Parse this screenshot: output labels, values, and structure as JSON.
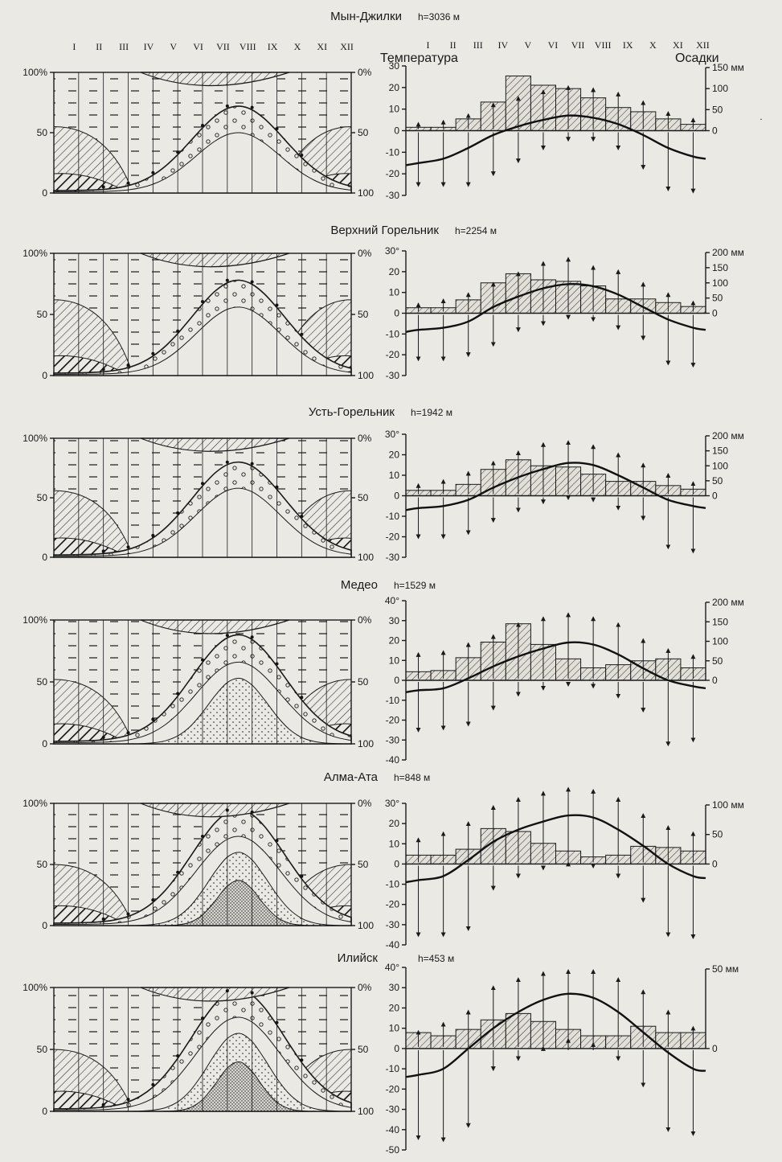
{
  "header": {
    "temperature_label": "Температура",
    "precip_label": "Осадки"
  },
  "months": [
    "I",
    "II",
    "III",
    "IV",
    "V",
    "VI",
    "VII",
    "VIII",
    "IX",
    "X",
    "XI",
    "XII"
  ],
  "left_axis": {
    "y_ticks": [
      "100%",
      "50",
      "0"
    ],
    "right_ticks": [
      "0%",
      "50",
      "100"
    ]
  },
  "stations": [
    {
      "name": "Мын-Джилки",
      "h_label": "h=3036 м"
    },
    {
      "name": "Верхний Горельник",
      "h_label": "h=2254 м"
    },
    {
      "name": "Усть-Горельник",
      "h_label": "h=1942 м"
    },
    {
      "name": "Медео",
      "h_label": "h=1529 м"
    },
    {
      "name": "Алма-Ата",
      "h_label": "h=848 м"
    },
    {
      "name": "Илийск",
      "h_label": "h=453 м"
    }
  ],
  "chart_data": [
    {
      "type": "bar",
      "station": "Мын-Джилки",
      "categories": [
        "I",
        "II",
        "III",
        "IV",
        "V",
        "VI",
        "VII",
        "VIII",
        "IX",
        "X",
        "XI",
        "XII"
      ],
      "temp_ticks": [
        "30",
        "20",
        "10",
        "0",
        "-10",
        "-20",
        "-30"
      ],
      "ylim_temp": [
        -30,
        30
      ],
      "precip_ticks": [
        "150 мм",
        "100",
        "50",
        "0"
      ],
      "ylim_precip": [
        0,
        150
      ],
      "series": [
        {
          "name": "Осадки",
          "kind": "bar",
          "values": [
            8,
            8,
            28,
            68,
            130,
            108,
            100,
            78,
            55,
            45,
            28,
            15
          ]
        },
        {
          "name": "Температура",
          "kind": "line",
          "values": [
            -15,
            -13,
            -8,
            -2,
            2,
            5,
            7,
            6,
            3,
            -2,
            -8,
            -12
          ]
        },
        {
          "name": "max",
          "kind": "arrow-up",
          "values": [
            3,
            4,
            7,
            12,
            15,
            18,
            20,
            19,
            17,
            13,
            8,
            5
          ]
        },
        {
          "name": "min",
          "kind": "arrow-down",
          "values": [
            -25,
            -25,
            -25,
            -20,
            -14,
            -8,
            -4,
            -4,
            -8,
            -17,
            -27,
            -28
          ]
        }
      ]
    },
    {
      "type": "bar",
      "station": "Верхний Горельник",
      "categories": [
        "I",
        "II",
        "III",
        "IV",
        "V",
        "VI",
        "VII",
        "VIII",
        "IX",
        "X",
        "XI",
        "XII"
      ],
      "temp_ticks": [
        "30°",
        "20",
        "10",
        "0",
        "-10",
        "-20",
        "-30"
      ],
      "ylim_temp": [
        -30,
        30
      ],
      "precip_ticks": [
        "200 мм",
        "150",
        "100",
        "50",
        "0"
      ],
      "ylim_precip": [
        0,
        200
      ],
      "series": [
        {
          "name": "Осадки",
          "kind": "bar",
          "values": [
            18,
            18,
            44,
            100,
            130,
            110,
            105,
            90,
            47,
            47,
            35,
            22
          ]
        },
        {
          "name": "Температура",
          "kind": "line",
          "values": [
            -8,
            -7,
            -4,
            3,
            8,
            12,
            14,
            13,
            9,
            3,
            -3,
            -7
          ]
        },
        {
          "name": "max",
          "kind": "arrow-up",
          "values": [
            4,
            6,
            9,
            14,
            19,
            24,
            26,
            22,
            20,
            14,
            9,
            5
          ]
        },
        {
          "name": "min",
          "kind": "arrow-down",
          "values": [
            -22,
            -22,
            -20,
            -15,
            -8,
            -5,
            -2,
            -3,
            -7,
            -12,
            -24,
            -25
          ]
        }
      ]
    },
    {
      "type": "bar",
      "station": "Усть-Горельник",
      "categories": [
        "I",
        "II",
        "III",
        "IV",
        "V",
        "VI",
        "VII",
        "VIII",
        "IX",
        "X",
        "XI",
        "XII"
      ],
      "temp_ticks": [
        "30°",
        "20",
        "10",
        "0",
        "-10",
        "-20",
        "-30"
      ],
      "ylim_temp": [
        -30,
        30
      ],
      "precip_ticks": [
        "200 мм",
        "150",
        "100",
        "50",
        "0"
      ],
      "ylim_precip": [
        0,
        200
      ],
      "series": [
        {
          "name": "Осадки",
          "kind": "bar",
          "values": [
            18,
            18,
            38,
            88,
            120,
            100,
            96,
            72,
            48,
            48,
            34,
            22
          ]
        },
        {
          "name": "Температура",
          "kind": "line",
          "values": [
            -6,
            -5,
            -2,
            4,
            9,
            13,
            16,
            15,
            10,
            4,
            -2,
            -5
          ]
        },
        {
          "name": "max",
          "kind": "arrow-up",
          "values": [
            5,
            7,
            11,
            16,
            21,
            25,
            26,
            24,
            20,
            15,
            10,
            6
          ]
        },
        {
          "name": "min",
          "kind": "arrow-down",
          "values": [
            -20,
            -20,
            -18,
            -12,
            -7,
            -3,
            -1,
            -2,
            -6,
            -11,
            -25,
            -27
          ]
        }
      ]
    },
    {
      "type": "bar",
      "station": "Медео",
      "categories": [
        "I",
        "II",
        "III",
        "IV",
        "V",
        "VI",
        "VII",
        "VIII",
        "IX",
        "X",
        "XI",
        "XII"
      ],
      "temp_ticks": [
        "40°",
        "30",
        "20",
        "10",
        "0",
        "-10",
        "-20",
        "-30",
        "-40"
      ],
      "ylim_temp": [
        -40,
        40
      ],
      "precip_ticks": [
        "200 мм",
        "150",
        "100",
        "50",
        "0"
      ],
      "ylim_precip": [
        0,
        200
      ],
      "series": [
        {
          "name": "Осадки",
          "kind": "bar",
          "values": [
            22,
            25,
            58,
            98,
            145,
            92,
            55,
            32,
            40,
            50,
            55,
            32
          ]
        },
        {
          "name": "Температура",
          "kind": "line",
          "values": [
            -5,
            -4,
            1,
            7,
            12,
            16,
            19,
            18,
            13,
            6,
            0,
            -3
          ]
        },
        {
          "name": "max",
          "kind": "arrow-up",
          "values": [
            13,
            14,
            18,
            22,
            28,
            31,
            33,
            31,
            28,
            20,
            15,
            12
          ]
        },
        {
          "name": "min",
          "kind": "arrow-down",
          "values": [
            -25,
            -24,
            -22,
            -14,
            -7,
            -4,
            -2,
            -3,
            -8,
            -15,
            -32,
            -30
          ]
        }
      ]
    },
    {
      "type": "bar",
      "station": "Алма-Ата",
      "categories": [
        "I",
        "II",
        "III",
        "IV",
        "V",
        "VI",
        "VII",
        "VIII",
        "IX",
        "X",
        "XI",
        "XII"
      ],
      "temp_ticks": [
        "30°",
        "20",
        "10",
        "0",
        "-10",
        "-20",
        "-30",
        "-40"
      ],
      "ylim_temp": [
        -40,
        30
      ],
      "precip_ticks": [
        "100 мм",
        "50",
        "0"
      ],
      "ylim_precip": [
        0,
        100
      ],
      "series": [
        {
          "name": "Осадки",
          "kind": "bar",
          "values": [
            15,
            15,
            25,
            60,
            55,
            35,
            22,
            12,
            15,
            30,
            28,
            22
          ]
        },
        {
          "name": "Температура",
          "kind": "line",
          "values": [
            -8,
            -6,
            2,
            11,
            17,
            21,
            24,
            23,
            17,
            9,
            0,
            -6
          ]
        },
        {
          "name": "max",
          "kind": "arrow-up",
          "values": [
            12,
            15,
            20,
            28,
            32,
            35,
            37,
            36,
            32,
            24,
            18,
            15
          ]
        },
        {
          "name": "min",
          "kind": "arrow-down",
          "values": [
            -35,
            -35,
            -32,
            -12,
            -6,
            -2,
            0,
            -1,
            -6,
            -18,
            -35,
            -36
          ]
        }
      ]
    },
    {
      "type": "bar",
      "station": "Илийск",
      "categories": [
        "I",
        "II",
        "III",
        "IV",
        "V",
        "VI",
        "VII",
        "VIII",
        "IX",
        "X",
        "XI",
        "XII"
      ],
      "temp_ticks": [
        "40°",
        "30",
        "20",
        "10",
        "0",
        "-10",
        "-20",
        "-30",
        "-40",
        "-50"
      ],
      "ylim_temp": [
        -50,
        40
      ],
      "precip_ticks": [
        "50 мм",
        "0"
      ],
      "ylim_precip": [
        0,
        50
      ],
      "series": [
        {
          "name": "Осадки",
          "kind": "bar",
          "values": [
            10,
            8,
            12,
            18,
            22,
            17,
            12,
            8,
            8,
            14,
            10,
            10
          ]
        },
        {
          "name": "Температура",
          "kind": "line",
          "values": [
            -13,
            -10,
            0,
            10,
            18,
            24,
            27,
            25,
            18,
            8,
            -2,
            -10
          ]
        },
        {
          "name": "max",
          "kind": "arrow-up",
          "values": [
            8,
            12,
            18,
            30,
            34,
            37,
            38,
            38,
            34,
            28,
            18,
            10
          ]
        },
        {
          "name": "min",
          "kind": "arrow-down",
          "values": [
            -44,
            -45,
            -38,
            -10,
            -5,
            0,
            4,
            2,
            -5,
            -18,
            -40,
            -42
          ]
        }
      ]
    }
  ]
}
